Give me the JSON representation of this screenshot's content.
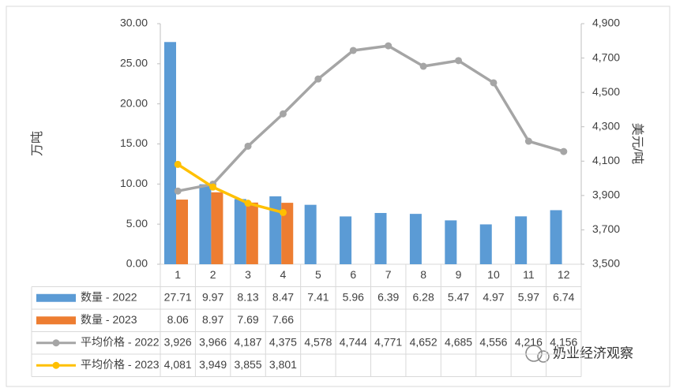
{
  "chart_data": {
    "type": "bar-line-table",
    "categories": [
      "1",
      "2",
      "3",
      "4",
      "5",
      "6",
      "7",
      "8",
      "9",
      "10",
      "11",
      "12"
    ],
    "y_label": "万吨",
    "y2_label": "美元/吨",
    "ylim": [
      0,
      30
    ],
    "yticks": [
      {
        "value": 0,
        "label": "0.00"
      },
      {
        "value": 5,
        "label": "5.00"
      },
      {
        "value": 10,
        "label": "10.00"
      },
      {
        "value": 15,
        "label": "15.00"
      },
      {
        "value": 20,
        "label": "20.00"
      },
      {
        "value": 25,
        "label": "25.00"
      },
      {
        "value": 30,
        "label": "30.00"
      }
    ],
    "y2lim": [
      3500,
      4900
    ],
    "y2ticks": [
      {
        "value": 3500,
        "label": "3,500"
      },
      {
        "value": 3700,
        "label": "3,700"
      },
      {
        "value": 3900,
        "label": "3,900"
      },
      {
        "value": 4100,
        "label": "4,100"
      },
      {
        "value": 4300,
        "label": "4,300"
      },
      {
        "value": 4500,
        "label": "4,500"
      },
      {
        "value": 4700,
        "label": "4,700"
      },
      {
        "value": 4900,
        "label": "4,900"
      }
    ],
    "series": [
      {
        "name": "数量 - 2022",
        "kind": "bar",
        "color": "#5b9bd5",
        "values": [
          27.71,
          9.97,
          8.13,
          8.47,
          7.41,
          5.96,
          6.39,
          6.28,
          5.47,
          4.97,
          5.97,
          6.74
        ]
      },
      {
        "name": "数量 - 2023",
        "kind": "bar",
        "color": "#ed7d31",
        "values": [
          8.06,
          8.97,
          7.69,
          7.66,
          null,
          null,
          null,
          null,
          null,
          null,
          null,
          null
        ]
      },
      {
        "name": "平均价格 - 2022",
        "kind": "line",
        "axis": "y2",
        "color": "#a5a5a5",
        "values": [
          3926,
          3966,
          4187,
          4375,
          4578,
          4744,
          4771,
          4652,
          4685,
          4556,
          4216,
          4156
        ],
        "value_labels": [
          "3,926",
          "3,966",
          "4,187",
          "4,375",
          "4,578",
          "4,744",
          "4,771",
          "4,652",
          "4,685",
          "4,556",
          "4,216",
          "4,156"
        ]
      },
      {
        "name": "平均价格 - 2023",
        "kind": "line",
        "axis": "y2",
        "color": "#ffc000",
        "values": [
          4081,
          3949,
          3855,
          3801,
          null,
          null,
          null,
          null,
          null,
          null,
          null,
          null
        ],
        "value_labels": [
          "4,081",
          "3,949",
          "3,855",
          "3,801",
          null,
          null,
          null,
          null,
          null,
          null,
          null,
          null
        ]
      }
    ],
    "watermark": "奶业经济观察"
  }
}
